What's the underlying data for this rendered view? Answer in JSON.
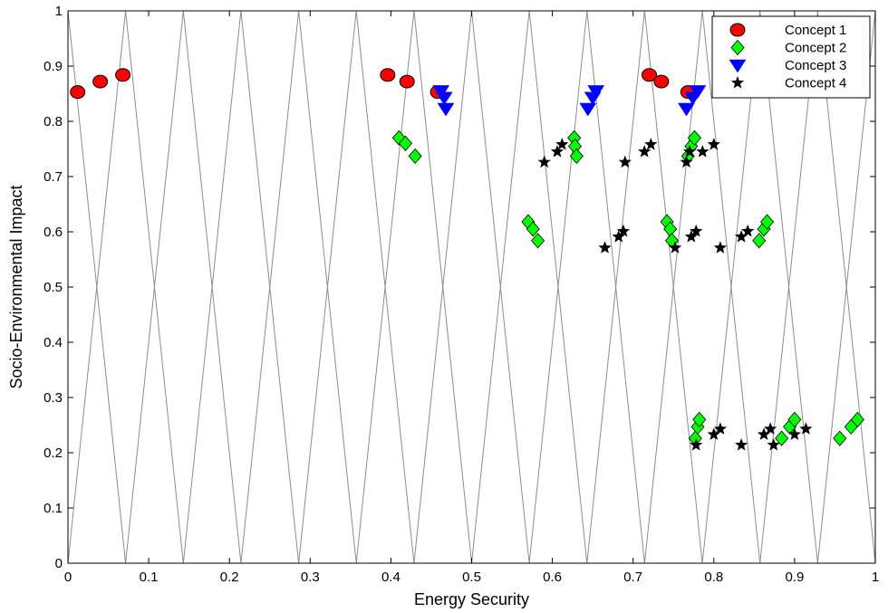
{
  "chart_data": {
    "type": "scatter",
    "title": "",
    "xlabel": "Energy Security",
    "ylabel": "Socio-Environmental Impact",
    "xlim": [
      0,
      1
    ],
    "ylim": [
      0,
      1
    ],
    "xticks": [
      "0",
      "0.1",
      "0.2",
      "0.3",
      "0.4",
      "0.5",
      "0.6",
      "0.7",
      "0.8",
      "0.9",
      "1"
    ],
    "yticks": [
      "0",
      "0.1",
      "0.2",
      "0.3",
      "0.4",
      "0.5",
      "0.6",
      "0.7",
      "0.8",
      "0.9",
      "1"
    ],
    "grid": false,
    "legend_position": "top-right",
    "background_lines": {
      "color": "#8c8c8c",
      "description_points": [
        [
          0,
          1
        ],
        [
          0.0714,
          0
        ],
        [
          0.1429,
          1
        ],
        [
          0.2143,
          0
        ],
        [
          0.2857,
          1
        ],
        [
          0.3571,
          0
        ],
        [
          0.4286,
          1
        ],
        [
          0.5,
          0
        ],
        [
          0.5714,
          1
        ],
        [
          0.6429,
          0
        ],
        [
          0.7143,
          1
        ],
        [
          0.7857,
          0
        ],
        [
          0.8571,
          1
        ],
        [
          0.9286,
          0
        ],
        [
          1.0,
          1
        ]
      ],
      "mirror_points": [
        [
          0,
          0
        ],
        [
          0.0714,
          1
        ],
        [
          0.1429,
          0
        ],
        [
          0.2143,
          1
        ],
        [
          0.2857,
          0
        ],
        [
          0.3571,
          1
        ],
        [
          0.4286,
          0
        ],
        [
          0.5,
          1
        ],
        [
          0.5714,
          0
        ],
        [
          0.6429,
          1
        ],
        [
          0.7143,
          0
        ],
        [
          0.7857,
          1
        ],
        [
          0.8571,
          0
        ],
        [
          0.9286,
          1
        ],
        [
          1.0,
          0
        ]
      ]
    },
    "series": [
      {
        "name": "Concept 1",
        "marker": "circle",
        "color": "#ff0000",
        "x": [
          0.012,
          0.04,
          0.068,
          0.396,
          0.42,
          0.458,
          0.72,
          0.735,
          0.768
        ],
        "y": [
          0.853,
          0.872,
          0.884,
          0.884,
          0.872,
          0.853,
          0.884,
          0.872,
          0.853
        ]
      },
      {
        "name": "Concept 2",
        "marker": "diamond",
        "color": "#00ff00",
        "x": [
          0.41,
          0.418,
          0.43,
          0.57,
          0.576,
          0.582,
          0.627,
          0.628,
          0.63,
          0.768,
          0.772,
          0.776,
          0.742,
          0.746,
          0.748,
          0.856,
          0.862,
          0.866,
          0.777,
          0.78,
          0.782,
          0.884,
          0.894,
          0.9,
          0.956,
          0.97,
          0.978
        ],
        "y": [
          0.77,
          0.76,
          0.737,
          0.618,
          0.605,
          0.584,
          0.77,
          0.755,
          0.737,
          0.737,
          0.755,
          0.77,
          0.618,
          0.605,
          0.584,
          0.584,
          0.605,
          0.618,
          0.226,
          0.247,
          0.26,
          0.226,
          0.247,
          0.26,
          0.226,
          0.247,
          0.26
        ]
      },
      {
        "name": "Concept 3",
        "marker": "triangle-down",
        "color": "#0000ff",
        "x": [
          0.462,
          0.466,
          0.468,
          0.644,
          0.65,
          0.654,
          0.766,
          0.774,
          0.78
        ],
        "y": [
          0.855,
          0.843,
          0.823,
          0.823,
          0.843,
          0.855,
          0.823,
          0.843,
          0.855
        ]
      },
      {
        "name": "Concept 4",
        "marker": "star",
        "color": "#000000",
        "x": [
          0.59,
          0.606,
          0.612,
          0.665,
          0.682,
          0.688,
          0.69,
          0.714,
          0.722,
          0.766,
          0.77,
          0.752,
          0.772,
          0.778,
          0.786,
          0.8,
          0.808,
          0.834,
          0.842,
          0.778,
          0.8,
          0.808,
          0.834,
          0.862,
          0.87,
          0.874,
          0.9,
          0.914
        ],
        "y": [
          0.726,
          0.745,
          0.758,
          0.571,
          0.591,
          0.601,
          0.726,
          0.745,
          0.758,
          0.726,
          0.745,
          0.571,
          0.591,
          0.601,
          0.745,
          0.758,
          0.571,
          0.591,
          0.601,
          0.214,
          0.233,
          0.243,
          0.214,
          0.233,
          0.243,
          0.214,
          0.233,
          0.243
        ]
      }
    ]
  }
}
